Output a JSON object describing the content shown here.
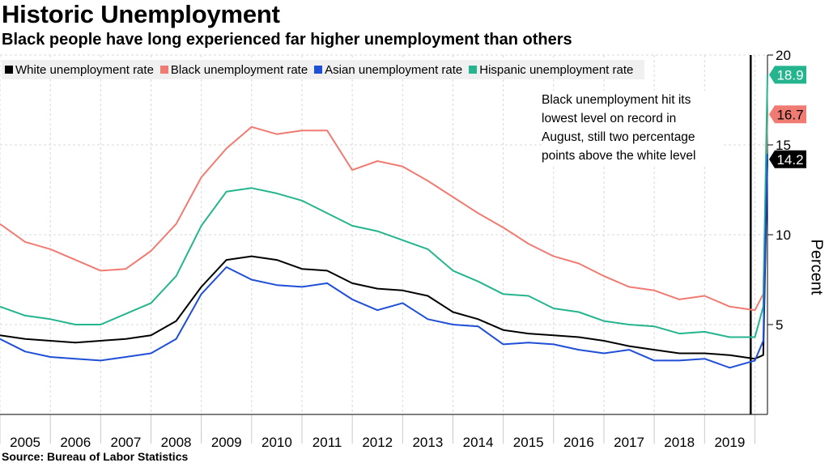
{
  "title": "Historic Unemployment",
  "subtitle": "Black people have long experienced far higher unemployment than others",
  "source": "Source: Bureau of Labor Statistics",
  "annotation": "Black unemployment hit its lowest level on record in August, still two percentage points above the white level",
  "colors": {
    "white": "#000000",
    "black": "#f07b72",
    "asian": "#1f4fd6",
    "hispanic": "#24b58f"
  },
  "chart_data": {
    "type": "line",
    "title": "Historic Unemployment",
    "subtitle": "Black people have long experienced far higher unemployment than others",
    "xlabel": "",
    "ylabel": "Percent",
    "x_ticks": [
      "2005",
      "2006",
      "2007",
      "2008",
      "2009",
      "2010",
      "2011",
      "2012",
      "2013",
      "2014",
      "2015",
      "2016",
      "2017",
      "2018",
      "2019"
    ],
    "x_range": [
      "2005-01",
      "2020-04"
    ],
    "ylim": [
      0,
      20
    ],
    "y_ticks": [
      5,
      10,
      15,
      20
    ],
    "grid": true,
    "legend_position": "top-left",
    "x": [
      "2005-01",
      "2005-07",
      "2006-01",
      "2006-07",
      "2007-01",
      "2007-07",
      "2008-01",
      "2008-07",
      "2009-01",
      "2009-07",
      "2010-01",
      "2010-07",
      "2011-01",
      "2011-07",
      "2012-01",
      "2012-07",
      "2013-01",
      "2013-07",
      "2014-01",
      "2014-07",
      "2015-01",
      "2015-07",
      "2016-01",
      "2016-07",
      "2017-01",
      "2017-07",
      "2018-01",
      "2018-07",
      "2019-01",
      "2019-07",
      "2020-01",
      "2020-03",
      "2020-04"
    ],
    "series": [
      {
        "name": "White unemployment rate",
        "values": [
          4.4,
          4.2,
          4.1,
          4.0,
          4.1,
          4.2,
          4.4,
          5.2,
          7.1,
          8.6,
          8.8,
          8.6,
          8.1,
          8.0,
          7.3,
          7.0,
          6.9,
          6.6,
          5.7,
          5.3,
          4.7,
          4.5,
          4.4,
          4.3,
          4.1,
          3.8,
          3.6,
          3.4,
          3.4,
          3.3,
          3.1,
          3.3,
          14.2
        ]
      },
      {
        "name": "Black unemployment rate",
        "values": [
          10.6,
          9.6,
          9.2,
          8.6,
          8.0,
          8.1,
          9.1,
          10.6,
          13.2,
          14.8,
          16.0,
          15.6,
          15.8,
          15.8,
          13.6,
          14.1,
          13.8,
          13.0,
          12.1,
          11.2,
          10.4,
          9.5,
          8.8,
          8.4,
          7.7,
          7.1,
          6.9,
          6.4,
          6.6,
          6.0,
          5.8,
          6.7,
          16.7
        ]
      },
      {
        "name": "Asian unemployment rate",
        "values": [
          4.2,
          3.5,
          3.2,
          3.1,
          3.0,
          3.2,
          3.4,
          4.2,
          6.7,
          8.2,
          7.5,
          7.2,
          7.1,
          7.3,
          6.4,
          5.8,
          6.2,
          5.3,
          5.0,
          4.9,
          3.9,
          4.0,
          3.9,
          3.6,
          3.4,
          3.6,
          3.0,
          3.0,
          3.1,
          2.6,
          3.0,
          4.1,
          14.5
        ]
      },
      {
        "name": "Hispanic unemployment rate",
        "values": [
          6.0,
          5.5,
          5.3,
          5.0,
          5.0,
          5.6,
          6.2,
          7.7,
          10.5,
          12.4,
          12.6,
          12.3,
          11.9,
          11.2,
          10.5,
          10.2,
          9.7,
          9.2,
          8.0,
          7.4,
          6.7,
          6.6,
          5.9,
          5.7,
          5.2,
          5.0,
          4.9,
          4.5,
          4.6,
          4.3,
          4.3,
          6.0,
          18.9
        ]
      }
    ],
    "end_labels": [
      "18.9",
      "16.7",
      "14.2"
    ],
    "annotation_line_x": "2019-12"
  }
}
